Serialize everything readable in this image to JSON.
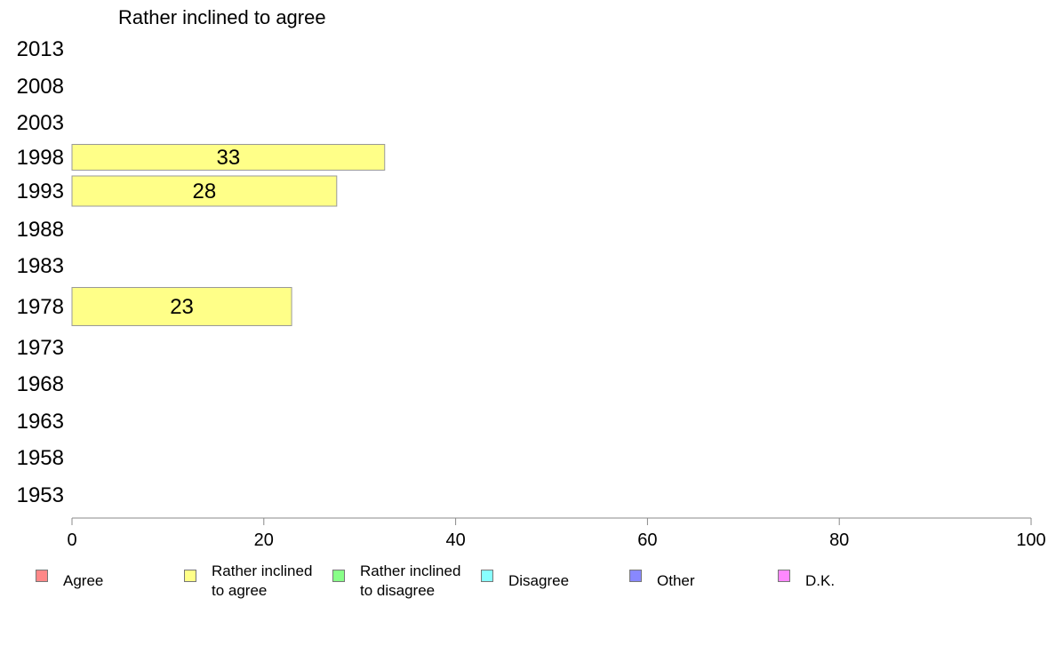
{
  "chart_data": {
    "type": "bar",
    "orientation": "horizontal",
    "title": "Rather inclined to agree",
    "categories": [
      "2013",
      "2008",
      "2003",
      "1998",
      "1993",
      "1988",
      "1983",
      "1978",
      "1973",
      "1968",
      "1963",
      "1958",
      "1953"
    ],
    "series": [
      {
        "name": "Rather inclined to agree",
        "color": "#ffff88",
        "values": [
          null,
          null,
          null,
          32.6,
          27.6,
          null,
          null,
          22.9,
          null,
          null,
          null,
          null,
          null
        ],
        "labels": [
          "",
          "",
          "",
          "33",
          "28",
          "",
          "",
          "23",
          "",
          "",
          "",
          "",
          ""
        ]
      }
    ],
    "xlim": [
      0,
      100
    ],
    "xticks": [
      "0",
      "20",
      "40",
      "60",
      "80",
      "100"
    ],
    "grid": false,
    "legend_position": "bottom",
    "legend": [
      {
        "label": "Agree",
        "color": "#ff8888"
      },
      {
        "label": "Rather inclined\nto agree",
        "color": "#ffff88"
      },
      {
        "label": "Rather inclined\nto disagree",
        "color": "#88ff88"
      },
      {
        "label": "Disagree",
        "color": "#88ffff"
      },
      {
        "label": "Other",
        "color": "#8888ff"
      },
      {
        "label": "D.K.",
        "color": "#ff88ff"
      }
    ]
  }
}
